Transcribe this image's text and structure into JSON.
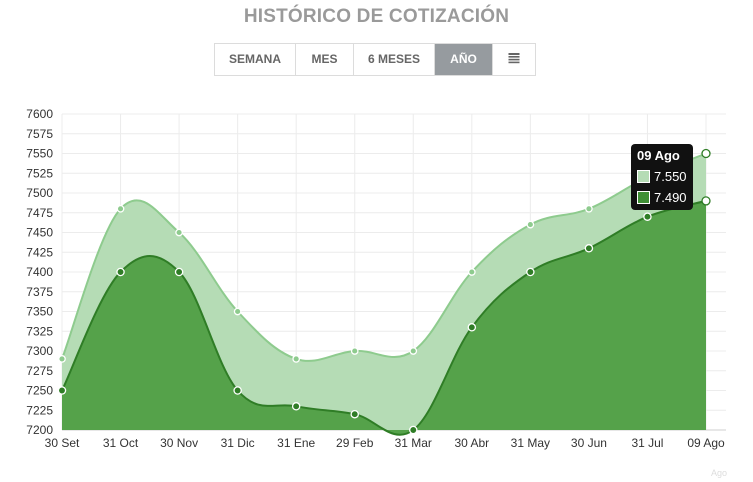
{
  "header": {
    "title": "HISTÓRICO DE COTIZACIÓN"
  },
  "range_buttons": [
    {
      "label": "SEMANA",
      "active": false
    },
    {
      "label": "MES",
      "active": false
    },
    {
      "label": "6 MESES",
      "active": false
    },
    {
      "label": "AÑO",
      "active": true
    },
    {
      "label": "",
      "icon": "calendar-icon",
      "active": false
    }
  ],
  "tooltip": {
    "date": "09 Ago",
    "values": [
      "7.550",
      "7.490"
    ]
  },
  "watermark": "Ago",
  "colors": {
    "series_high": "#b5dcb5",
    "series_high_line": "#8ecb8e",
    "series_low": "#55a24a",
    "series_low_line": "#2f7d26",
    "grid": "#ececec"
  },
  "chart_data": {
    "type": "area",
    "categories": [
      "30 Set",
      "31 Oct",
      "30 Nov",
      "31 Dic",
      "31 Ene",
      "29 Feb",
      "31 Mar",
      "30 Abr",
      "31 May",
      "30 Jun",
      "31 Jul",
      "09 Ago"
    ],
    "series": [
      {
        "values": [
          7290,
          7480,
          7450,
          7350,
          7290,
          7300,
          7300,
          7400,
          7460,
          7480,
          7520,
          7550
        ]
      },
      {
        "values": [
          7250,
          7400,
          7400,
          7250,
          7230,
          7220,
          7200,
          7330,
          7400,
          7430,
          7470,
          7490
        ]
      }
    ],
    "ylim": [
      7200,
      7600
    ],
    "yticks": [
      7200,
      7225,
      7250,
      7275,
      7300,
      7325,
      7350,
      7375,
      7400,
      7425,
      7450,
      7475,
      7500,
      7525,
      7550,
      7575,
      7600
    ],
    "grid": true,
    "legend": "none",
    "xlabel": "",
    "ylabel": ""
  }
}
